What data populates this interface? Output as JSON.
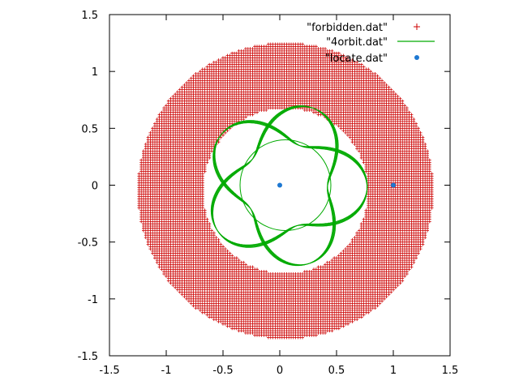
{
  "chart_data": {
    "type": "scatter",
    "title": "",
    "xlabel": "",
    "ylabel": "",
    "xlim": [
      -1.5,
      1.5
    ],
    "ylim": [
      -1.5,
      1.5
    ],
    "x_ticks": [
      "-1.5",
      "-1",
      "-0.5",
      "0",
      "0.5",
      "1",
      "1.5"
    ],
    "y_ticks": [
      "-1.5",
      "-1",
      "-0.5",
      "0",
      "0.5",
      "1",
      "1.5"
    ],
    "grid": false,
    "legend_position": "top-right",
    "series": [
      {
        "name": "\"forbidden.dat\"",
        "style": "points-plus",
        "color": "#cc0000",
        "description": "annulus of forbidden points centered near (0.05, -0.05)",
        "center": [
          0.05,
          -0.05
        ],
        "inner_radius": 0.73,
        "outer_radius": 1.3,
        "grid_step": 0.02
      },
      {
        "name": "\"4orbit.dat\"",
        "style": "line",
        "color": "#00aa00",
        "description": "rosette orbit with 5-fold symmetry, radius between about 0.37 and 0.72",
        "r_min": 0.37,
        "r_max": 0.72,
        "lobes": 5,
        "strands": 6
      },
      {
        "name": "\"locate.dat\"",
        "style": "points-filled",
        "color": "#1e78d2",
        "points": [
          {
            "x": 0,
            "y": 0
          },
          {
            "x": 1,
            "y": 0
          }
        ]
      }
    ]
  }
}
